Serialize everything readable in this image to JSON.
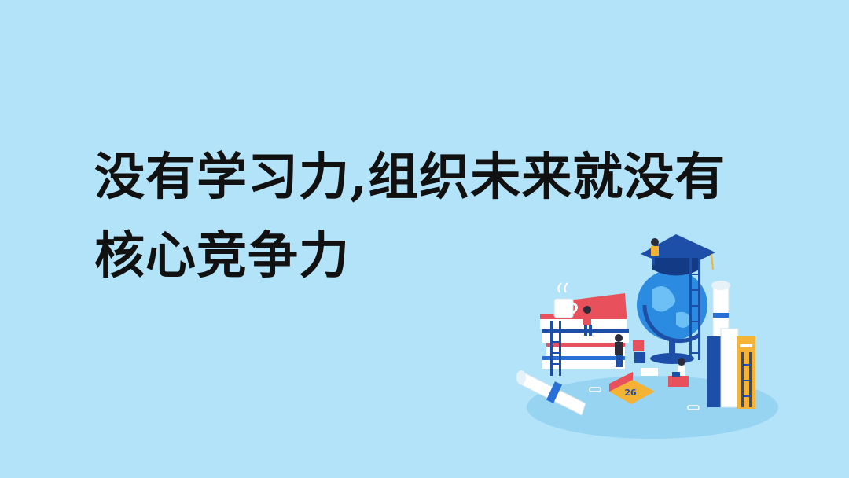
{
  "headline": {
    "line1": "没有学习力,组织未来就没有",
    "line2": "核心竞争力"
  },
  "illustration": {
    "calendar_day": "26"
  },
  "colors": {
    "background": "#b3e3f8",
    "text": "#111111",
    "accent_red": "#e8505b",
    "accent_blue": "#1e4fa8",
    "accent_yellow": "#f5b335"
  }
}
